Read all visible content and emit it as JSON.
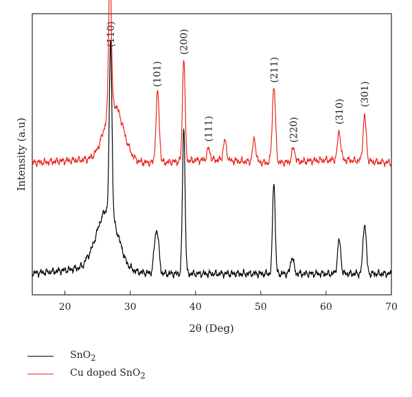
{
  "chart_data": {
    "type": "line",
    "xlabel": "2θ (Deg)",
    "ylabel": "Intensity (a.u)",
    "xlim": [
      15,
      70
    ],
    "xticks": [
      "20",
      "30",
      "40",
      "50",
      "60",
      "70"
    ],
    "xtick_values": [
      20,
      30,
      40,
      50,
      60,
      70
    ],
    "grid": false,
    "legend_placement": "bottom-left",
    "peak_labels": [
      {
        "text": "(110)",
        "x": 27.0
      },
      {
        "text": "(101)",
        "x": 34.1
      },
      {
        "text": "(200)",
        "x": 38.2
      },
      {
        "text": "(111)",
        "x": 42.0
      },
      {
        "text": "(211)",
        "x": 52.0
      },
      {
        "text": "(220)",
        "x": 55.0
      },
      {
        "text": "(310)",
        "x": 62.0
      },
      {
        "text": "(301)",
        "x": 65.9
      }
    ],
    "series": [
      {
        "name": "SnO",
        "name_subscript": "2",
        "color": "#000000",
        "peaks": [
          [
            27.0,
            0.62
          ],
          [
            33.8,
            0.09
          ],
          [
            34.2,
            0.12
          ],
          [
            38.2,
            0.52
          ],
          [
            52.0,
            0.33
          ],
          [
            54.8,
            0.06
          ],
          [
            62.0,
            0.12
          ],
          [
            65.9,
            0.18
          ]
        ],
        "broad_hump": [
          26.5,
          0.2,
          2.2
        ]
      },
      {
        "name": "Cu doped SnO",
        "name_subscript": "2",
        "color": "#e8231d",
        "peaks": [
          [
            26.9,
            0.52
          ],
          [
            34.2,
            0.25
          ],
          [
            38.2,
            0.37
          ],
          [
            42.0,
            0.04
          ],
          [
            44.5,
            0.07
          ],
          [
            49.0,
            0.08
          ],
          [
            52.0,
            0.27
          ],
          [
            55.0,
            0.05
          ],
          [
            62.0,
            0.1
          ],
          [
            65.9,
            0.16
          ]
        ],
        "broad_hump": [
          27.5,
          0.2,
          2.0
        ]
      }
    ]
  }
}
